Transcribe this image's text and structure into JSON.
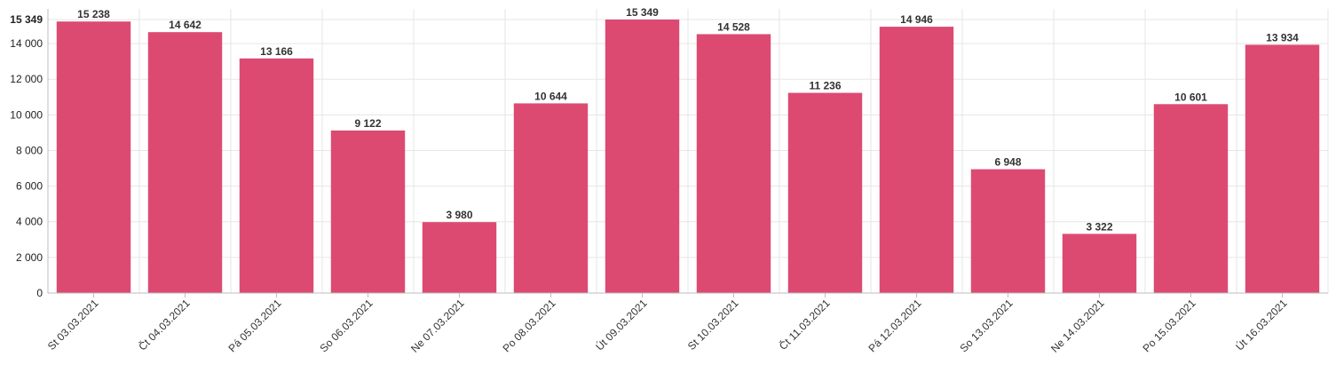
{
  "chart_data": {
    "type": "bar",
    "title": "",
    "xlabel": "",
    "ylabel": "",
    "categories": [
      "St 03.03.2021",
      "Čt 04.03.2021",
      "Pá 05.03.2021",
      "So 06.03.2021",
      "Ne 07.03.2021",
      "Po 08.03.2021",
      "Út 09.03.2021",
      "St 10.03.2021",
      "Čt 11.03.2021",
      "Pá 12.03.2021",
      "So 13.03.2021",
      "Ne 14.03.2021",
      "Po 15.03.2021",
      "Út 16.03.2021"
    ],
    "values": [
      15238,
      14642,
      13166,
      9122,
      3980,
      10644,
      15349,
      14528,
      11236,
      14946,
      6948,
      3322,
      10601,
      13934
    ],
    "value_labels": [
      "15 238",
      "14 642",
      "13 166",
      "9 122",
      "3 980",
      "10 644",
      "15 349",
      "14 528",
      "11 236",
      "14 946",
      "6 948",
      "3 322",
      "10 601",
      "13 934"
    ],
    "ylim": [
      0,
      15349
    ],
    "yticks": [
      0,
      2000,
      4000,
      6000,
      8000,
      10000,
      12000,
      14000,
      15349
    ],
    "ytick_labels": [
      "0",
      "2 000",
      "4 000",
      "6 000",
      "8 000",
      "10 000",
      "12 000",
      "14 000",
      "15 349"
    ],
    "grid": true,
    "legend": "none",
    "bar_color": "#dc4a72"
  }
}
